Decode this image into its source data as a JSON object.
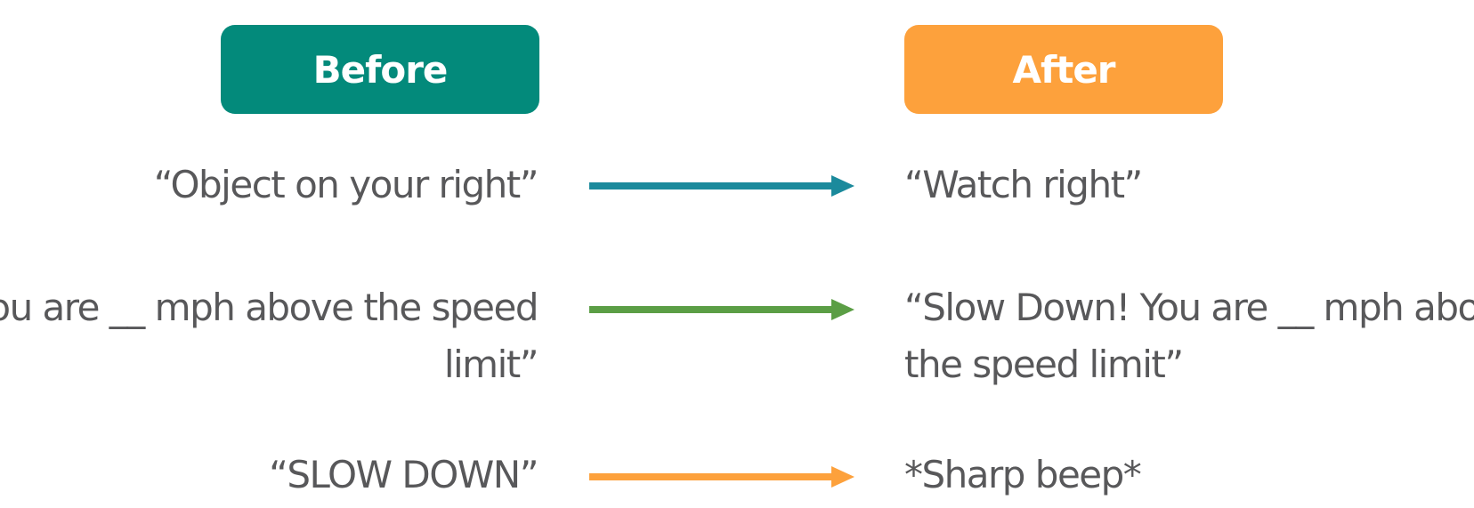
{
  "headers": {
    "before": {
      "label": "Before",
      "color": "#038a7b"
    },
    "after": {
      "label": "After",
      "color": "#fda13c"
    }
  },
  "rows": [
    {
      "before": [
        "“Object on your right”"
      ],
      "after": [
        "“Watch right”"
      ],
      "arrow_color": "#1b8a9c"
    },
    {
      "before": [
        "“You are __ mph above the speed",
        "limit”"
      ],
      "after": [
        "“Slow Down! You are __ mph above",
        "the speed limit”"
      ],
      "arrow_color": "#5b9e45"
    },
    {
      "before": [
        "“SLOW DOWN”"
      ],
      "after": [
        "*Sharp beep*"
      ],
      "arrow_color": "#fda13c"
    }
  ]
}
